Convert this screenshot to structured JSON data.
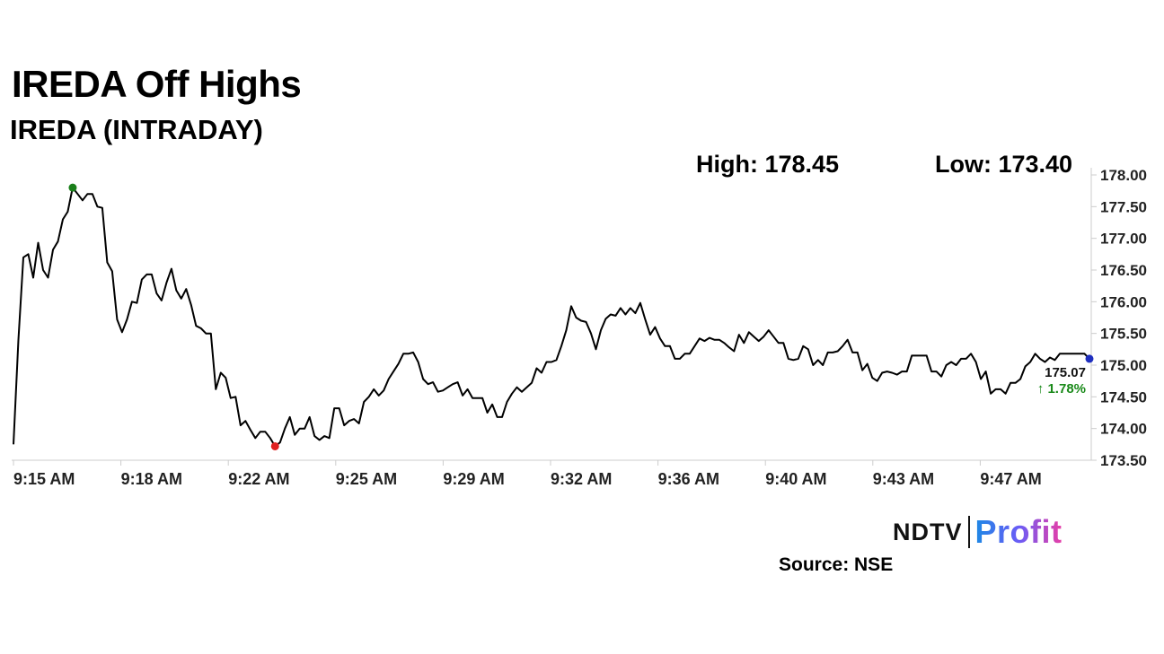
{
  "header": {
    "title": "IREDA Off Highs",
    "subtitle": "IREDA (INTRADAY)",
    "high_text": "High: 178.45",
    "low_text": "Low: 173.40"
  },
  "footer": {
    "brand_left": "NDTV",
    "brand_right": "Profit",
    "source": "Source: NSE"
  },
  "colors": {
    "line": "#000000",
    "high_marker": "#1a7f1a",
    "low_marker": "#e02020",
    "last_marker": "#1f2fbf",
    "change_positive": "#1a8a1a",
    "axis": "#cccccc"
  },
  "chart_data": {
    "type": "line",
    "x_ticks": [
      "9:15 AM",
      "9:18 AM",
      "9:22 AM",
      "9:25 AM",
      "9:29 AM",
      "9:32 AM",
      "9:36 AM",
      "9:40 AM",
      "9:43 AM",
      "9:47 AM"
    ],
    "y_ticks": [
      "178.00",
      "177.50",
      "177.00",
      "176.50",
      "176.00",
      "175.50",
      "175.00",
      "174.50",
      "174.00",
      "173.50"
    ],
    "ylim": [
      173.5,
      178.0
    ],
    "x_minutes_range": [
      0,
      34
    ],
    "series": [
      {
        "values": [
          173.75,
          175.4,
          176.7,
          176.75,
          176.38,
          176.93,
          176.5,
          176.38,
          176.82,
          176.95,
          177.3,
          177.42,
          177.8,
          177.7,
          177.6,
          177.7,
          177.7,
          177.5,
          177.48,
          176.62,
          176.48,
          175.72,
          175.52,
          175.72,
          176.0,
          175.98,
          176.35,
          176.43,
          176.43,
          176.13,
          176.02,
          176.3,
          176.52,
          176.18,
          176.05,
          176.2,
          175.95,
          175.62,
          175.58,
          175.5,
          175.5,
          174.62,
          174.88,
          174.8,
          174.48,
          174.5,
          174.05,
          174.12,
          173.98,
          173.85,
          173.95,
          173.95,
          173.85,
          173.72,
          173.78,
          174.0,
          174.18,
          173.9,
          174.0,
          174.0,
          174.18,
          173.88,
          173.82,
          173.88,
          173.85,
          174.32,
          174.32,
          174.05,
          174.12,
          174.15,
          174.08,
          174.42,
          174.5,
          174.62,
          174.52,
          174.6,
          174.78,
          174.9,
          175.02,
          175.18,
          175.18,
          175.2,
          175.05,
          174.78,
          174.7,
          174.73,
          174.58,
          174.6,
          174.65,
          174.7,
          174.73,
          174.52,
          174.62,
          174.48,
          174.48,
          174.48,
          174.25,
          174.38,
          174.18,
          174.18,
          174.42,
          174.55,
          174.65,
          174.58,
          174.65,
          174.72,
          174.95,
          174.88,
          175.05,
          175.05,
          175.08,
          175.3,
          175.55,
          175.93,
          175.75,
          175.7,
          175.68,
          175.5,
          175.25,
          175.55,
          175.73,
          175.8,
          175.78,
          175.9,
          175.8,
          175.9,
          175.82,
          175.98,
          175.72,
          175.48,
          175.6,
          175.42,
          175.3,
          175.3,
          175.1,
          175.1,
          175.18,
          175.18,
          175.3,
          175.42,
          175.38,
          175.43,
          175.4,
          175.4,
          175.35,
          175.28,
          175.22,
          175.48,
          175.35,
          175.52,
          175.45,
          175.38,
          175.45,
          175.55,
          175.45,
          175.35,
          175.35,
          175.1,
          175.08,
          175.1,
          175.3,
          175.25,
          175.0,
          175.08,
          175.0,
          175.2,
          175.2,
          175.22,
          175.3,
          175.4,
          175.2,
          175.2,
          174.92,
          175.02,
          174.8,
          174.75,
          174.88,
          174.9,
          174.88,
          174.85,
          174.9,
          174.9,
          175.15,
          175.15,
          175.15,
          175.15,
          174.9,
          174.9,
          174.82,
          175.0,
          175.05,
          175.0,
          175.1,
          175.1,
          175.18,
          175.05,
          174.78,
          174.9,
          174.55,
          174.62,
          174.62,
          174.55,
          174.72,
          174.72,
          174.78,
          174.98,
          175.05,
          175.18,
          175.1,
          175.05,
          175.12,
          175.08,
          175.18,
          175.18,
          175.18,
          175.18,
          175.18,
          175.18,
          175.1
        ]
      }
    ],
    "markers": {
      "high_index": 12,
      "low_index": 53
    },
    "last_price": "175.07",
    "change_text": "↑ 1.78%",
    "grid": false
  }
}
